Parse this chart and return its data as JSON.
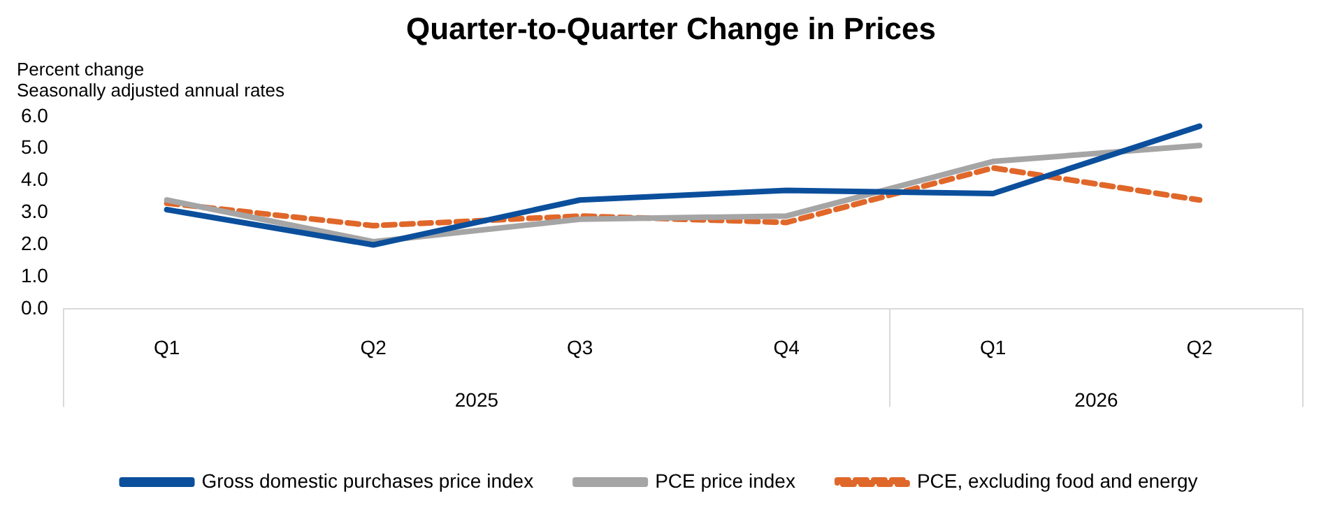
{
  "chart_data": {
    "type": "line",
    "title": "Quarter-to-Quarter Change in Prices",
    "ylabel": "Percent change",
    "subtitle": "Seasonally adjusted annual rates",
    "categories": [
      "Q1",
      "Q2",
      "Q3",
      "Q4",
      "Q1",
      "Q2"
    ],
    "annotations": [
      "2025",
      "2026"
    ],
    "series": [
      {
        "name": "Gross domestic purchases price index",
        "color": "#0b4f9c",
        "line_style": "solid",
        "values": [
          3.1,
          2.0,
          3.4,
          3.7,
          3.6,
          5.7
        ]
      },
      {
        "name": "PCE price index",
        "color": "#a5a5a5",
        "line_style": "solid",
        "values": [
          3.4,
          2.1,
          2.8,
          2.9,
          4.6,
          5.1
        ]
      },
      {
        "name": "PCE, excluding food and energy",
        "color": "#e0672a",
        "line_style": "dashed",
        "values": [
          3.3,
          2.6,
          2.9,
          2.7,
          4.4,
          3.4
        ]
      }
    ],
    "ylim": [
      0,
      6
    ],
    "yticks": [
      {
        "value": 0,
        "label": "0.0"
      },
      {
        "value": 1,
        "label": "1.0"
      },
      {
        "value": 2,
        "label": "2.0"
      },
      {
        "value": 3,
        "label": "3.0"
      },
      {
        "value": 4,
        "label": "4.0"
      },
      {
        "value": 5,
        "label": "5.0"
      },
      {
        "value": 6,
        "label": "6.0"
      }
    ],
    "grid": false,
    "legend": "bottom",
    "marker": "none"
  }
}
